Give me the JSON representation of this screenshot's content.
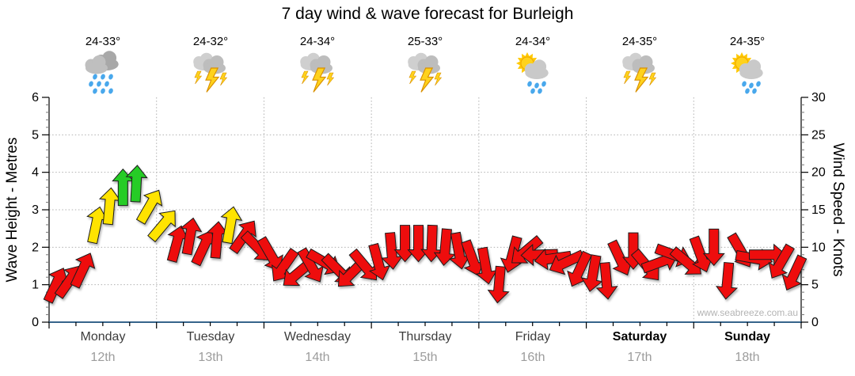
{
  "title": "7 day wind & wave forecast for Burleigh",
  "watermark": "www.seabreeze.com.au",
  "days": [
    {
      "name": "Monday",
      "date": "12th",
      "temp": "24-33°",
      "icon": "rain"
    },
    {
      "name": "Tuesday",
      "date": "13th",
      "temp": "24-32°",
      "icon": "storm"
    },
    {
      "name": "Wednesday",
      "date": "14th",
      "temp": "24-34°",
      "icon": "storm"
    },
    {
      "name": "Thursday",
      "date": "15th",
      "temp": "25-33°",
      "icon": "storm"
    },
    {
      "name": "Friday",
      "date": "16th",
      "temp": "24-34°",
      "icon": "sun-shower"
    },
    {
      "name": "Saturday",
      "date": "17th",
      "temp": "24-35°",
      "icon": "storm"
    },
    {
      "name": "Sunday",
      "date": "18th",
      "temp": "24-35°",
      "icon": "sun-shower"
    }
  ],
  "chart_data": {
    "type": "scatter",
    "marker": "wind-direction-arrow",
    "x_categories": [
      "Monday 12th",
      "Tuesday 13th",
      "Wednesday 14th",
      "Thursday 15th",
      "Friday 16th",
      "Saturday 17th",
      "Sunday 18th"
    ],
    "left_axis": {
      "label": "Wave Height - Metres",
      "range": [
        0,
        6
      ],
      "major_step": 1,
      "minors_per_major": 4
    },
    "right_axis": {
      "label": "Wind Speed - Knots",
      "range": [
        0,
        30
      ],
      "major_step": 5,
      "minors_per_major": 4
    },
    "grid": "dotted horizontal each metre (1-5), dotted vertical at day boundaries",
    "baseline_color": "#36648B",
    "colors": {
      "r": "#ee1111",
      "y": "#ffe300",
      "g": "#27cc27"
    },
    "color_meaning": {
      "r": "light wind",
      "y": "moderate wind",
      "g": "fresh wind"
    },
    "arrows": [
      {
        "kn": 5.0,
        "deg": 25,
        "c": "r"
      },
      {
        "kn": 5.5,
        "deg": 35,
        "c": "r"
      },
      {
        "kn": 7.0,
        "deg": 25,
        "c": "r"
      },
      {
        "kn": 13.0,
        "deg": 12,
        "c": "y"
      },
      {
        "kn": 15.5,
        "deg": 5,
        "c": "y"
      },
      {
        "kn": 18.0,
        "deg": 0,
        "c": "g"
      },
      {
        "kn": 18.5,
        "deg": 3,
        "c": "g"
      },
      {
        "kn": 15.5,
        "deg": 30,
        "c": "y"
      },
      {
        "kn": 13.0,
        "deg": 40,
        "c": "y"
      },
      {
        "kn": 10.5,
        "deg": 15,
        "c": "r"
      },
      {
        "kn": 11.5,
        "deg": 10,
        "c": "r"
      },
      {
        "kn": 10.0,
        "deg": 25,
        "c": "r"
      },
      {
        "kn": 11.0,
        "deg": 5,
        "c": "r"
      },
      {
        "kn": 13.0,
        "deg": 10,
        "c": "y"
      },
      {
        "kn": 11.5,
        "deg": 35,
        "c": "r"
      },
      {
        "kn": 10.0,
        "deg": 135,
        "c": "r"
      },
      {
        "kn": 9.0,
        "deg": 150,
        "c": "r"
      },
      {
        "kn": 7.5,
        "deg": 215,
        "c": "r"
      },
      {
        "kn": 6.5,
        "deg": 230,
        "c": "r"
      },
      {
        "kn": 7.5,
        "deg": 150,
        "c": "r"
      },
      {
        "kn": 8.0,
        "deg": 120,
        "c": "r"
      },
      {
        "kn": 7.0,
        "deg": 135,
        "c": "r"
      },
      {
        "kn": 6.5,
        "deg": 225,
        "c": "r"
      },
      {
        "kn": 7.5,
        "deg": 140,
        "c": "r"
      },
      {
        "kn": 8.0,
        "deg": 165,
        "c": "r"
      },
      {
        "kn": 9.5,
        "deg": 175,
        "c": "r"
      },
      {
        "kn": 10.5,
        "deg": 180,
        "c": "r"
      },
      {
        "kn": 10.5,
        "deg": 180,
        "c": "r"
      },
      {
        "kn": 10.5,
        "deg": 182,
        "c": "r"
      },
      {
        "kn": 10.0,
        "deg": 185,
        "c": "r"
      },
      {
        "kn": 9.5,
        "deg": 170,
        "c": "r"
      },
      {
        "kn": 8.5,
        "deg": 160,
        "c": "r"
      },
      {
        "kn": 7.5,
        "deg": 170,
        "c": "r"
      },
      {
        "kn": 5.0,
        "deg": 185,
        "c": "r"
      },
      {
        "kn": 9.0,
        "deg": 195,
        "c": "r"
      },
      {
        "kn": 9.5,
        "deg": 230,
        "c": "r"
      },
      {
        "kn": 9.0,
        "deg": 268,
        "c": "r"
      },
      {
        "kn": 8.5,
        "deg": 262,
        "c": "r"
      },
      {
        "kn": 8.0,
        "deg": 245,
        "c": "r"
      },
      {
        "kn": 7.0,
        "deg": 205,
        "c": "r"
      },
      {
        "kn": 6.5,
        "deg": 190,
        "c": "r"
      },
      {
        "kn": 5.5,
        "deg": 175,
        "c": "r"
      },
      {
        "kn": 8.5,
        "deg": 155,
        "c": "r"
      },
      {
        "kn": 9.5,
        "deg": 180,
        "c": "r"
      },
      {
        "kn": 7.5,
        "deg": 140,
        "c": "r"
      },
      {
        "kn": 8.0,
        "deg": 70,
        "c": "r"
      },
      {
        "kn": 9.0,
        "deg": 110,
        "c": "r"
      },
      {
        "kn": 8.0,
        "deg": 130,
        "c": "r"
      },
      {
        "kn": 9.0,
        "deg": 160,
        "c": "r"
      },
      {
        "kn": 10.0,
        "deg": 180,
        "c": "r"
      },
      {
        "kn": 5.5,
        "deg": 185,
        "c": "r"
      },
      {
        "kn": 9.5,
        "deg": 150,
        "c": "r"
      },
      {
        "kn": 8.5,
        "deg": 100,
        "c": "r"
      },
      {
        "kn": 9.0,
        "deg": 90,
        "c": "r"
      },
      {
        "kn": 8.0,
        "deg": 210,
        "c": "r"
      },
      {
        "kn": 6.5,
        "deg": 205,
        "c": "r"
      }
    ]
  }
}
